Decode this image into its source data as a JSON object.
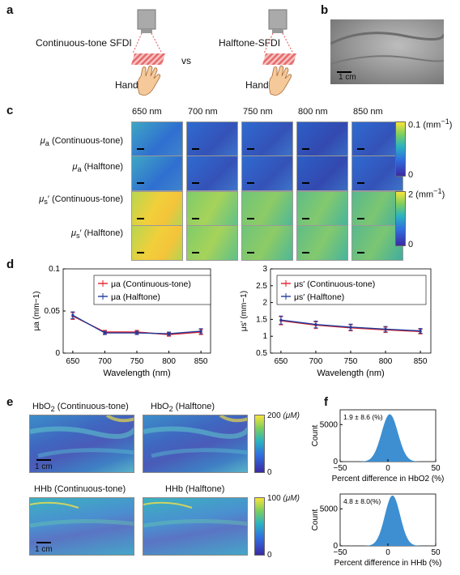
{
  "panel_labels": {
    "a": "a",
    "b": "b",
    "c": "c",
    "d": "d",
    "e": "e",
    "f": "f"
  },
  "panel_a": {
    "left_title": "Continuous-tone SFDI",
    "right_title": "Halftone-SFDI",
    "vs": "vs",
    "hand_left": "Hand",
    "hand_right": "Hand"
  },
  "panel_b": {
    "scale": "1 cm"
  },
  "panel_c": {
    "wavelengths": [
      "650 nm",
      "700 nm",
      "750 nm",
      "800 nm",
      "850 nm"
    ],
    "rows": [
      {
        "sym": "μ",
        "sub": "a",
        "label": " (Continuous-tone)"
      },
      {
        "sym": "μ",
        "sub": "a",
        "label": " (Halftone)"
      },
      {
        "sym": "μ",
        "sub": "s",
        "label": "′ (Continuous-tone)"
      },
      {
        "sym": "μ",
        "sub": "s",
        "label": "′ (Halftone)"
      }
    ],
    "cbar1": {
      "max": "0.1 (mm",
      "sup": "−1",
      "close": ")",
      "min": "0"
    },
    "cbar2": {
      "max": "2 (mm",
      "sup": "−1",
      "close": ")",
      "min": "0"
    }
  },
  "chart_data": [
    {
      "type": "line",
      "x": [
        650,
        700,
        750,
        800,
        850
      ],
      "xlabel": "Wavelength (nm)",
      "ylabel": "μa (mm−1)",
      "ylim": [
        0,
        0.1
      ],
      "yticks": [
        "0",
        "0.05",
        "0.1"
      ],
      "xticks": [
        "650",
        "700",
        "750",
        "800",
        "850"
      ],
      "legend": "top-right",
      "series": [
        {
          "name": "μa (Continuous-tone)",
          "color": "#e0202a",
          "values": [
            0.044,
            0.025,
            0.025,
            0.022,
            0.025
          ],
          "err": [
            0.004,
            0.002,
            0.002,
            0.002,
            0.003
          ]
        },
        {
          "name": "μa (Halftone)",
          "color": "#1f3b9a",
          "values": [
            0.045,
            0.024,
            0.024,
            0.023,
            0.026
          ],
          "err": [
            0.004,
            0.002,
            0.002,
            0.002,
            0.003
          ]
        }
      ]
    },
    {
      "type": "line",
      "x": [
        650,
        700,
        750,
        800,
        850
      ],
      "xlabel": "Wavelength (nm)",
      "ylabel": "μs′ (mm−1)",
      "ylim": [
        0.5,
        3
      ],
      "yticks": [
        "0.5",
        "1",
        "1.5",
        "2",
        "2.5",
        "3"
      ],
      "xticks": [
        "650",
        "700",
        "750",
        "800",
        "850"
      ],
      "legend": "top-right",
      "series": [
        {
          "name": "μs′ (Continuous-tone)",
          "color": "#e0202a",
          "values": [
            1.46,
            1.33,
            1.25,
            1.19,
            1.14
          ],
          "err": [
            0.12,
            0.1,
            0.09,
            0.08,
            0.07
          ]
        },
        {
          "name": "μs′ (Halftone)",
          "color": "#1f3b9a",
          "values": [
            1.48,
            1.35,
            1.27,
            1.21,
            1.16
          ],
          "err": [
            0.12,
            0.1,
            0.09,
            0.08,
            0.07
          ]
        }
      ]
    },
    {
      "type": "area",
      "title": "1.9 ± 8.6 (%)",
      "xlabel": "Percent difference in HbO2 (%)",
      "ylabel": "Count",
      "xlim": [
        -50,
        50
      ],
      "ylim": [
        0,
        7000
      ],
      "xticks": [
        "−50",
        "0",
        "50"
      ],
      "yticks": [
        "0",
        "5000"
      ],
      "mean": 1.9,
      "sd": 8.6,
      "peak": 6400,
      "color": "#3d8fd1"
    },
    {
      "type": "area",
      "title": "4.8 ± 8.0(%)",
      "xlabel": "Percent difference in HHb (%)",
      "ylabel": "Count",
      "xlim": [
        -50,
        50
      ],
      "ylim": [
        0,
        7000
      ],
      "xticks": [
        "−50",
        "0",
        "50"
      ],
      "yticks": [
        "0",
        "5000"
      ],
      "mean": 4.8,
      "sd": 8.0,
      "peak": 6800,
      "color": "#3d8fd1"
    }
  ],
  "panel_e": {
    "maps": [
      {
        "title": "HbO",
        "sub": "2",
        "rest": " (Continuous-tone)",
        "scale": "1 cm"
      },
      {
        "title": "HbO",
        "sub": "2",
        "rest": " (Halftone)",
        "scale": ""
      },
      {
        "title": "HHb (Continuous-tone)",
        "sub": "",
        "rest": "",
        "scale": "1 cm"
      },
      {
        "title": "HHb (Halftone)",
        "sub": "",
        "rest": "",
        "scale": ""
      }
    ],
    "cbar1": {
      "max": "200",
      "unit": "(μM)",
      "min": "0"
    },
    "cbar2": {
      "max": "100",
      "unit": "(μM)",
      "min": "0"
    }
  }
}
